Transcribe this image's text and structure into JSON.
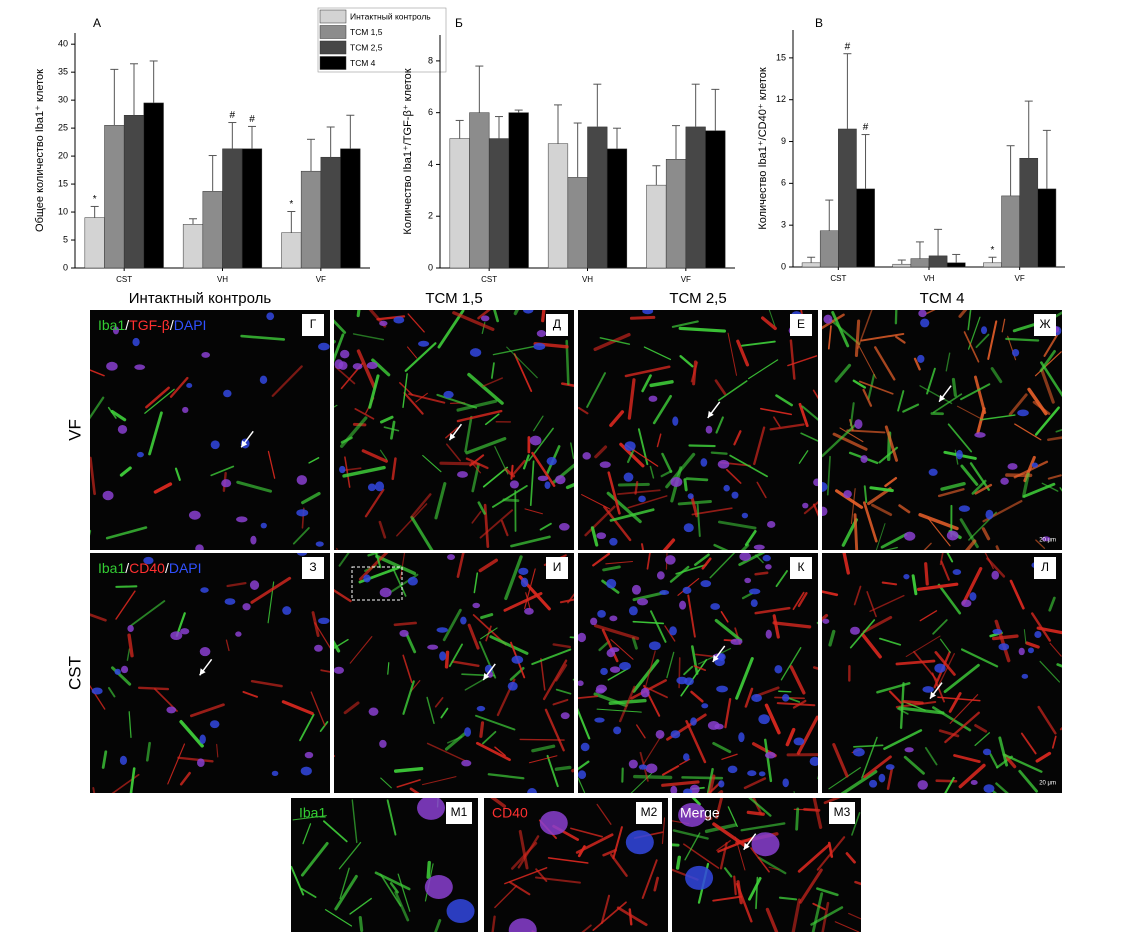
{
  "chart_data": [
    {
      "type": "bar",
      "panel_label": "А",
      "y_label": "Общее количество Iba1⁺ клеток",
      "categories": [
        "CST",
        "VH",
        "VF"
      ],
      "ylim": [
        0,
        42
      ],
      "yticks": [
        0,
        5,
        10,
        15,
        20,
        25,
        30,
        35,
        40
      ],
      "legend": "upper right",
      "series": [
        {
          "name": "Интактный контроль",
          "color": "#d3d3d3",
          "values": [
            9,
            7.8,
            6.3
          ],
          "errors": [
            2,
            1,
            3.8
          ],
          "annotations": [
            "*",
            null,
            "*"
          ]
        },
        {
          "name": "ТСМ 1,5",
          "color": "#8c8c8c",
          "values": [
            25.5,
            13.7,
            17.3
          ],
          "errors": [
            10,
            6.4,
            5.7
          ],
          "annotations": [
            null,
            null,
            null
          ]
        },
        {
          "name": "ТСМ 2,5",
          "color": "#474747",
          "values": [
            27.3,
            21.3,
            19.8
          ],
          "errors": [
            9.2,
            4.7,
            5.4
          ],
          "annotations": [
            null,
            "#",
            null
          ]
        },
        {
          "name": "ТСМ 4",
          "color": "#000000",
          "values": [
            29.5,
            21.3,
            21.3
          ],
          "errors": [
            7.5,
            4,
            6
          ],
          "annotations": [
            null,
            "#",
            null
          ]
        }
      ]
    },
    {
      "type": "bar",
      "panel_label": "Б",
      "y_label": "Количество Iba1⁺/TGF-β⁺ клеток",
      "categories": [
        "CST",
        "VH",
        "VF"
      ],
      "ylim": [
        0,
        9
      ],
      "yticks": [
        0,
        2,
        4,
        6,
        8
      ],
      "series": [
        {
          "color": "#d3d3d3",
          "values": [
            5.0,
            4.8,
            3.2
          ],
          "errors": [
            0.7,
            1.5,
            0.75
          ]
        },
        {
          "color": "#8c8c8c",
          "values": [
            6.0,
            3.5,
            4.2
          ],
          "errors": [
            1.8,
            2.1,
            1.3
          ]
        },
        {
          "color": "#474747",
          "values": [
            5.0,
            5.45,
            5.45
          ],
          "errors": [
            0.85,
            1.65,
            1.65
          ]
        },
        {
          "color": "#000000",
          "values": [
            6.0,
            4.6,
            5.3
          ],
          "errors": [
            0.1,
            0.8,
            1.6
          ]
        }
      ]
    },
    {
      "type": "bar",
      "panel_label": "В",
      "y_label": "Количество Iba1⁺/CD40⁺ клеток",
      "categories": [
        "CST",
        "VH",
        "VF"
      ],
      "ylim": [
        0,
        17
      ],
      "yticks": [
        0,
        3,
        6,
        9,
        12,
        15
      ],
      "series": [
        {
          "color": "#d3d3d3",
          "values": [
            0.3,
            0.2,
            0.3
          ],
          "errors": [
            0.4,
            0.3,
            0.4
          ],
          "annotations": [
            null,
            null,
            "*"
          ]
        },
        {
          "color": "#8c8c8c",
          "values": [
            2.6,
            0.6,
            5.1
          ],
          "errors": [
            2.2,
            1.2,
            3.6
          ],
          "annotations": [
            null,
            null,
            null
          ]
        },
        {
          "color": "#474747",
          "values": [
            9.9,
            0.8,
            7.8
          ],
          "errors": [
            5.4,
            1.9,
            4.1
          ],
          "annotations": [
            "#",
            null,
            null
          ]
        },
        {
          "color": "#000000",
          "values": [
            5.6,
            0.3,
            5.6
          ],
          "errors": [
            3.9,
            0.6,
            4.2
          ],
          "annotations": [
            "#",
            null,
            null
          ]
        }
      ]
    }
  ],
  "images": {
    "column_headers": [
      "Интактный контроль",
      "ТСМ 1,5",
      "ТСМ 2,5",
      "ТСМ 4"
    ],
    "row_labels": [
      "VF",
      "CST"
    ],
    "panel_letters": [
      "Г",
      "Д",
      "Е",
      "Ж",
      "З",
      "И",
      "К",
      "Л",
      "М1",
      "М2",
      "М3"
    ],
    "stain_row1": [
      {
        "text": "Iba1",
        "color": "#33cc33"
      },
      {
        "text": "/",
        "color": "#ffffff"
      },
      {
        "text": "TGF-β",
        "color": "#ff3030"
      },
      {
        "text": "/",
        "color": "#ffffff"
      },
      {
        "text": "DAPI",
        "color": "#3050ff"
      }
    ],
    "stain_row2": [
      {
        "text": "Iba1",
        "color": "#33cc33"
      },
      {
        "text": "/",
        "color": "#ffffff"
      },
      {
        "text": "CD40",
        "color": "#ff3030"
      },
      {
        "text": "/",
        "color": "#ffffff"
      },
      {
        "text": "DAPI",
        "color": "#3050ff"
      }
    ],
    "inset_labels": [
      {
        "text": "Iba1",
        "color": "#33cc33"
      },
      {
        "text": "CD40",
        "color": "#ff3030"
      },
      {
        "text": "Merge",
        "color": "#ffffff"
      }
    ],
    "scale_bar": "20 μm"
  }
}
